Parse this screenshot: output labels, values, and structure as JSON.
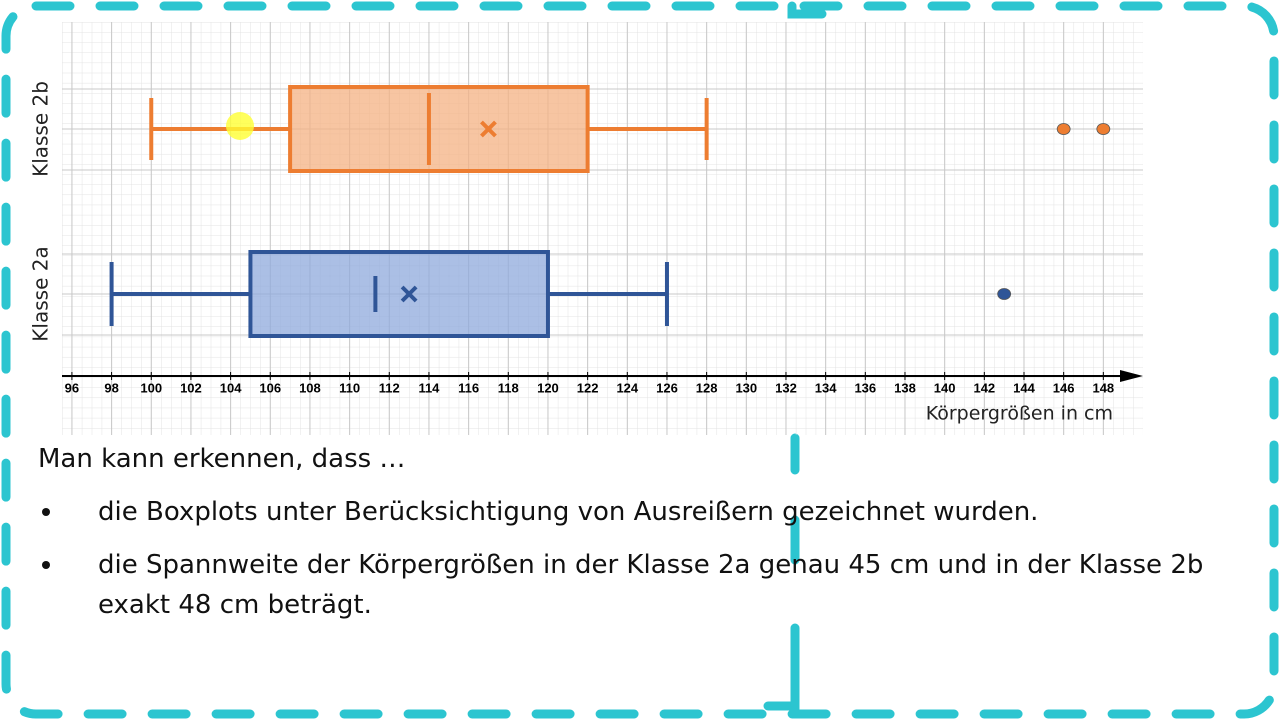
{
  "chart_data": {
    "type": "boxplot",
    "orientation": "horizontal",
    "x_label": "Körpergrößen in cm",
    "xlim": [
      95.5,
      150
    ],
    "xticks": [
      96,
      98,
      100,
      102,
      104,
      106,
      108,
      110,
      112,
      114,
      116,
      118,
      120,
      122,
      124,
      126,
      128,
      130,
      132,
      134,
      136,
      138,
      140,
      142,
      144,
      146,
      148
    ],
    "grid": true,
    "series": [
      {
        "name": "Klasse 2b",
        "color": "#ed7d31",
        "fill": "#f4b183",
        "whisker_low": 100,
        "q1": 107,
        "median": 114,
        "mean": 117,
        "q3": 122,
        "whisker_high": 128,
        "outliers": [
          146,
          148
        ]
      },
      {
        "name": "Klasse 2a",
        "color": "#2f5597",
        "fill": "#8faadc",
        "whisker_low": 98,
        "q1": 105,
        "median": 111.3,
        "mean": 113,
        "q3": 120,
        "whisker_high": 126,
        "outliers": [
          143
        ]
      }
    ]
  },
  "text": {
    "intro": "Man kann erkennen, dass …",
    "bullets": [
      "die Boxplots unter Berücksichtigung von Ausreißern gezeichnet wurden.",
      "die Spannweite der Körpergrößen in der Klasse 2a genau 45 cm und in der Klasse 2b exakt 48 cm beträgt."
    ]
  }
}
